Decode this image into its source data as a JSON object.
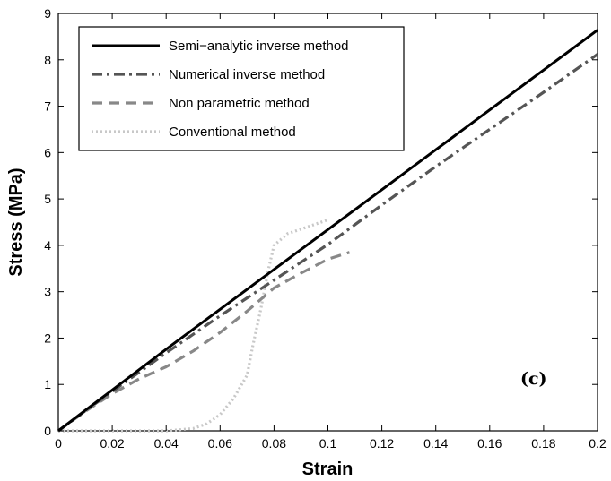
{
  "chart_data": {
    "type": "line",
    "xlabel": "Strain",
    "ylabel": "Stress (MPa)",
    "xlim": [
      0,
      0.2
    ],
    "ylim": [
      0,
      9
    ],
    "xticks": [
      0,
      0.02,
      0.04,
      0.06,
      0.08,
      0.1,
      0.12,
      0.14,
      0.16,
      0.18,
      0.2
    ],
    "xtick_labels": [
      "0",
      "0.02",
      "0.04",
      "0.06",
      "0.08",
      "0.1",
      "0.12",
      "0.14",
      "0.16",
      "0.18",
      "0.2"
    ],
    "yticks": [
      0,
      1,
      2,
      3,
      4,
      5,
      6,
      7,
      8,
      9
    ],
    "ytick_labels": [
      "0",
      "1",
      "2",
      "3",
      "4",
      "5",
      "6",
      "7",
      "8",
      "9"
    ],
    "grid": false,
    "legend_position": "top-left",
    "annotation": "(c)",
    "series": [
      {
        "name": "Semi−analytic inverse method",
        "style": "solid",
        "color": "#000000",
        "x": [
          0,
          0.01,
          0.02,
          0.04,
          0.06,
          0.08,
          0.1,
          0.12,
          0.14,
          0.16,
          0.18,
          0.2
        ],
        "y": [
          0,
          0.44,
          0.88,
          1.76,
          2.62,
          3.48,
          4.34,
          5.2,
          6.06,
          6.92,
          7.78,
          8.64
        ]
      },
      {
        "name": "Numerical inverse method",
        "style": "dashdot",
        "color": "#555555",
        "x": [
          0,
          0.01,
          0.02,
          0.04,
          0.06,
          0.08,
          0.1,
          0.12,
          0.14,
          0.16,
          0.18,
          0.2
        ],
        "y": [
          0,
          0.43,
          0.85,
          1.68,
          2.48,
          3.25,
          4.02,
          4.87,
          5.7,
          6.5,
          7.3,
          8.12
        ]
      },
      {
        "name": "Non parametric method",
        "style": "dashed",
        "color": "#888888",
        "x": [
          0,
          0.01,
          0.02,
          0.03,
          0.04,
          0.05,
          0.06,
          0.07,
          0.08,
          0.09,
          0.1,
          0.108
        ],
        "y": [
          0,
          0.42,
          0.8,
          1.12,
          1.38,
          1.72,
          2.12,
          2.58,
          3.08,
          3.4,
          3.7,
          3.85
        ]
      },
      {
        "name": "Conventional method",
        "style": "dotted",
        "color": "#c8c8c8",
        "x": [
          0,
          0.02,
          0.04,
          0.05,
          0.055,
          0.06,
          0.065,
          0.07,
          0.072,
          0.075,
          0.078,
          0.08,
          0.085,
          0.09,
          0.095,
          0.1
        ],
        "y": [
          0,
          0,
          0,
          0.05,
          0.15,
          0.35,
          0.7,
          1.2,
          1.8,
          2.6,
          3.5,
          4.0,
          4.25,
          4.35,
          4.45,
          4.55
        ]
      }
    ]
  }
}
